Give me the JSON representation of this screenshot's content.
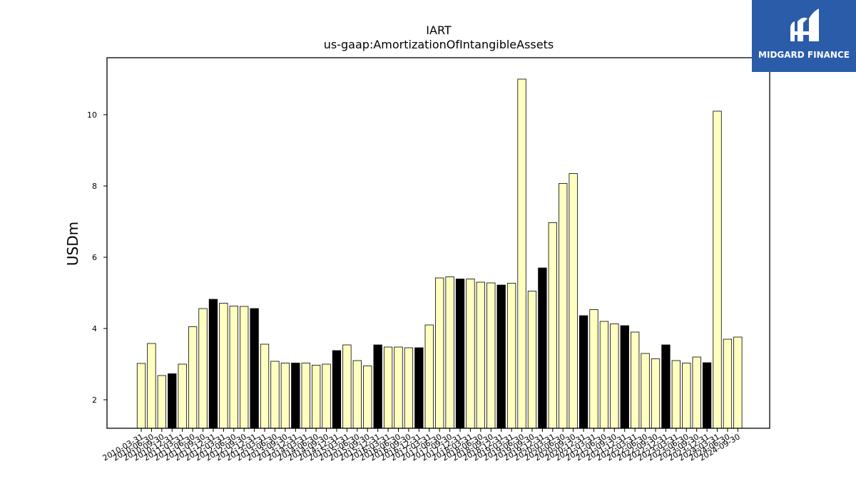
{
  "brand": {
    "name": "MIDGARD FINANCE",
    "color": "#2a5caa"
  },
  "chart_data": {
    "type": "bar",
    "title": "IART",
    "subtitle": "us-gaap:AmortizationOfIntangibleAssets",
    "ylabel": "USDm",
    "xlabel": "",
    "ylim": [
      1.2,
      11.6
    ],
    "yticks": [
      2,
      4,
      6,
      8,
      10
    ],
    "grid": false,
    "colors": {
      "quarter": "#ffffc0",
      "annual": "#000000",
      "edge": "#000000"
    },
    "categories": [
      "2010-03-31",
      "2010-06-30",
      "2010-09-30",
      "2010-12-31",
      "2011-03-31",
      "2011-06-30",
      "2011-09-30",
      "2011-12-31",
      "2012-03-31",
      "2012-06-30",
      "2012-09-30",
      "2012-12-31",
      "2013-03-31",
      "2013-06-30",
      "2013-09-30",
      "2013-12-31",
      "2014-03-31",
      "2014-06-30",
      "2014-09-30",
      "2014-12-31",
      "2015-03-31",
      "2015-06-30",
      "2015-09-30",
      "2015-12-31",
      "2016-03-31",
      "2016-06-30",
      "2016-09-30",
      "2016-12-31",
      "2017-03-31",
      "2017-06-30",
      "2017-09-30",
      "2017-12-31",
      "2018-03-31",
      "2018-06-30",
      "2018-09-30",
      "2018-12-31",
      "2019-03-31",
      "2019-06-30",
      "2019-09-30",
      "2019-12-31",
      "2020-03-31",
      "2020-06-30",
      "2020-09-30",
      "2020-12-31",
      "2021-03-31",
      "2021-06-30",
      "2021-09-30",
      "2021-12-31",
      "2022-03-31",
      "2022-06-30",
      "2022-09-30",
      "2022-12-31",
      "2023-03-31",
      "2023-06-30",
      "2023-09-30",
      "2023-12-31",
      "2024-03-31",
      "2024-06-30",
      "2024-09-30"
    ],
    "values": [
      3.02,
      3.58,
      2.68,
      2.73,
      3.0,
      4.05,
      4.56,
      4.82,
      4.71,
      4.63,
      4.62,
      4.56,
      3.56,
      3.08,
      3.03,
      3.03,
      3.03,
      2.97,
      3.0,
      3.38,
      3.54,
      3.1,
      2.95,
      3.54,
      3.48,
      3.48,
      3.46,
      3.46,
      4.1,
      5.42,
      5.45,
      5.39,
      5.39,
      5.3,
      5.28,
      5.22,
      5.27,
      11.0,
      5.05,
      5.7,
      6.97,
      8.07,
      8.35,
      4.36,
      4.53,
      4.2,
      4.13,
      4.08,
      3.9,
      3.3,
      3.15,
      3.54,
      3.1,
      3.03,
      3.2,
      3.04,
      10.1,
      3.7,
      3.76
    ],
    "annual": [
      false,
      false,
      false,
      true,
      false,
      false,
      false,
      true,
      false,
      false,
      false,
      true,
      false,
      false,
      false,
      true,
      false,
      false,
      false,
      true,
      false,
      false,
      false,
      true,
      false,
      false,
      false,
      true,
      false,
      false,
      false,
      true,
      false,
      false,
      false,
      true,
      false,
      false,
      false,
      true,
      false,
      false,
      false,
      true,
      false,
      false,
      false,
      true,
      false,
      false,
      false,
      true,
      false,
      false,
      false,
      true,
      false,
      false,
      false
    ]
  }
}
